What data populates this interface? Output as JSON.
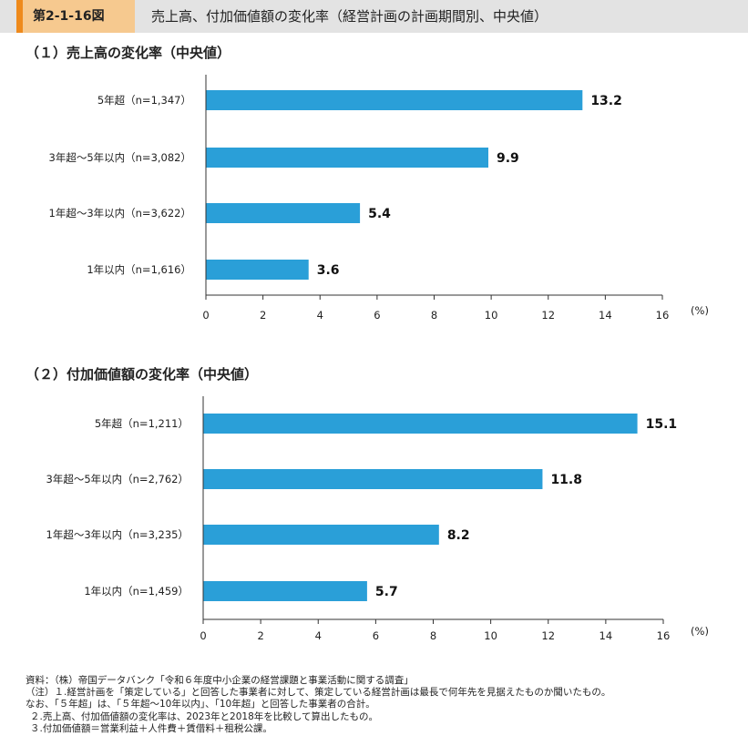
{
  "header": {
    "figure_number": "第2-1-16図",
    "title": "売上高、付加価値額の変化率（経営計画の計画期間別、中央値）"
  },
  "chart_data": [
    {
      "type": "bar",
      "orientation": "horizontal",
      "title": "（１）売上高の変化率（中央値）",
      "categories": [
        "5年超（n=1,347）",
        "3年超～5年以内（n=3,082）",
        "1年超～3年以内（n=3,622）",
        "1年以内（n=1,616）"
      ],
      "values": [
        13.2,
        9.9,
        5.4,
        3.6
      ],
      "value_labels": [
        "13.2",
        "9.9",
        "5.4",
        "3.6"
      ],
      "xlim": [
        0,
        16
      ],
      "xticks": [
        0,
        2,
        4,
        6,
        8,
        10,
        12,
        14,
        16
      ],
      "unit": "(%)",
      "bar_color": "#2a9fd8",
      "grid": false
    },
    {
      "type": "bar",
      "orientation": "horizontal",
      "title": "（２）付加価値額の変化率（中央値）",
      "categories": [
        "5年超（n=1,211）",
        "3年超～5年以内（n=2,762）",
        "1年超～3年以内（n=3,235）",
        "1年以内（n=1,459）"
      ],
      "values": [
        15.1,
        11.8,
        8.2,
        5.7
      ],
      "value_labels": [
        "15.1",
        "11.8",
        "8.2",
        "5.7"
      ],
      "xlim": [
        0,
        16
      ],
      "xticks": [
        0,
        2,
        4,
        6,
        8,
        10,
        12,
        14,
        16
      ],
      "unit": "(%)",
      "bar_color": "#2a9fd8",
      "grid": false
    }
  ],
  "notes": [
    "資料：（株）帝国データバンク「令和６年度中小企業の経営課題と事業活動に関する調査」",
    "（注）１.経営計画を「策定している」と回答した事業者に対して、策定している経営計画は最長で何年先を見据えたものか聞いたもの。",
    "なお、「５年超」は、「５年超～10年以内」、「10年超」と回答した事業者の合計。",
    "２.売上高、付加価値額の変化率は、2023年と2018年を比較して算出したもの。",
    "３.付加価値額＝営業利益＋人件費＋賃借料＋租税公課。"
  ]
}
